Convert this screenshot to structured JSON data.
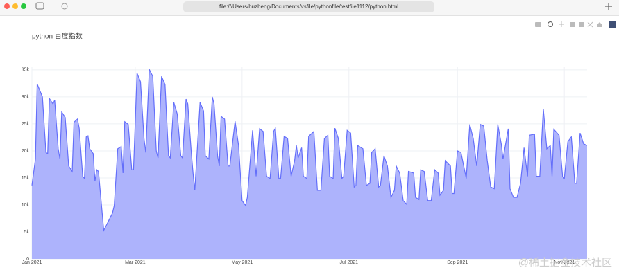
{
  "browser": {
    "url": "file:///Users/huzheng/Documents/vsfile/pythonfile/testfile1112/python.html"
  },
  "watermark": "@稀土掘金技术社区",
  "chart_data": {
    "type": "area",
    "title": "python 百度指数",
    "color": "#636efa",
    "fill": "#adb3fc",
    "grid": true,
    "x": [
      0,
      2,
      3,
      6,
      8,
      9,
      10,
      12,
      13,
      15,
      16,
      17,
      19,
      21,
      23,
      24,
      26,
      27,
      29,
      30,
      31,
      32,
      33,
      35,
      36,
      37,
      38,
      41,
      42,
      44,
      46,
      47,
      49,
      51,
      52,
      53,
      55,
      57,
      58,
      60,
      62,
      64,
      65,
      67,
      69,
      71,
      72,
      74,
      76,
      78,
      79,
      81,
      83,
      85,
      86,
      88,
      89,
      91,
      92,
      93,
      96,
      98,
      99,
      101,
      103,
      104,
      106,
      107,
      108,
      110,
      112,
      113,
      116,
      118,
      120,
      122,
      123,
      126,
      128,
      130,
      132,
      134,
      136,
      138,
      139,
      141,
      142,
      144,
      146,
      148,
      150,
      151,
      152,
      154,
      155,
      157,
      158,
      161,
      163,
      165,
      167,
      169,
      170,
      172,
      173,
      175,
      177,
      178,
      180,
      182,
      184,
      185,
      186,
      189,
      191,
      193,
      194,
      196,
      198,
      199,
      201,
      203,
      205,
      207,
      208,
      210,
      212,
      214,
      215,
      218,
      219,
      221,
      222,
      224,
      226,
      228,
      230,
      232,
      233,
      235,
      236,
      239,
      240,
      241,
      243,
      245,
      248,
      250,
      252,
      254,
      256,
      258,
      260,
      262,
      264,
      266,
      268,
      269,
      272,
      273,
      275,
      277,
      279,
      281,
      283,
      284,
      287,
      288,
      290,
      292,
      294,
      296,
      297,
      298,
      301,
      303,
      304,
      306,
      308,
      310,
      311,
      313,
      315,
      317
    ],
    "values": [
      13600,
      18500,
      32400,
      30000,
      19700,
      19500,
      29700,
      28700,
      29400,
      20400,
      18500,
      27200,
      26200,
      17200,
      16200,
      25300,
      25900,
      24200,
      15300,
      14900,
      22600,
      22800,
      20400,
      19500,
      14400,
      16500,
      16200,
      5300,
      5900,
      7200,
      8500,
      9900,
      20400,
      20800,
      15900,
      25400,
      24900,
      16500,
      16500,
      34400,
      32800,
      22300,
      19700,
      35100,
      33800,
      20000,
      18700,
      33800,
      32300,
      19100,
      18700,
      29000,
      26800,
      19100,
      18700,
      29600,
      28700,
      19700,
      15900,
      12700,
      29000,
      27400,
      19100,
      18500,
      30000,
      28700,
      19100,
      17200,
      26400,
      25900,
      17200,
      17200,
      25500,
      21000,
      10800,
      9900,
      11400,
      23800,
      15300,
      24100,
      23600,
      15300,
      14900,
      23600,
      24200,
      14900,
      14900,
      22700,
      22300,
      15300,
      18200,
      21000,
      18700,
      20600,
      15300,
      14900,
      22700,
      23600,
      12700,
      12700,
      22300,
      22900,
      15300,
      14900,
      24200,
      22300,
      14900,
      15300,
      23800,
      23300,
      13300,
      13600,
      21000,
      20400,
      13600,
      14000,
      19700,
      20400,
      13300,
      13600,
      19100,
      17200,
      11400,
      12700,
      17200,
      15900,
      10800,
      10100,
      16200,
      15900,
      11400,
      11000,
      16500,
      16200,
      10800,
      10800,
      16500,
      15900,
      11800,
      12700,
      18200,
      17200,
      12100,
      12100,
      20000,
      19700,
      14900,
      24900,
      22300,
      17200,
      24900,
      24600,
      18200,
      13300,
      13000,
      24900,
      21300,
      18500,
      24100,
      13000,
      11400,
      11400,
      14000,
      20600,
      15300,
      22900,
      23100,
      15300,
      15300,
      27800,
      20400,
      21000,
      15300,
      24000,
      22900,
      15300,
      14900,
      21700,
      22600,
      14000,
      14000,
      23300,
      21300,
      21000
    ],
    "xlim": [
      0,
      317
    ],
    "xticks": [
      {
        "value": 0,
        "label": "Jan 2021"
      },
      {
        "value": 59,
        "label": "Mar 2021"
      },
      {
        "value": 120,
        "label": "May 2021"
      },
      {
        "value": 181,
        "label": "Jul 2021"
      },
      {
        "value": 243,
        "label": "Sep 2021"
      },
      {
        "value": 304,
        "label": "Nov 2021"
      }
    ],
    "ylim": [
      0,
      35500
    ],
    "yticks": [
      0,
      {
        "value": 5000,
        "label": "5k"
      },
      {
        "value": 10000,
        "label": "10k"
      },
      {
        "value": 15000,
        "label": "15k"
      },
      {
        "value": 20000,
        "label": "20k"
      },
      {
        "value": 25000,
        "label": "25k"
      },
      {
        "value": 30000,
        "label": "30k"
      },
      {
        "value": 35000,
        "label": "35k"
      }
    ]
  }
}
